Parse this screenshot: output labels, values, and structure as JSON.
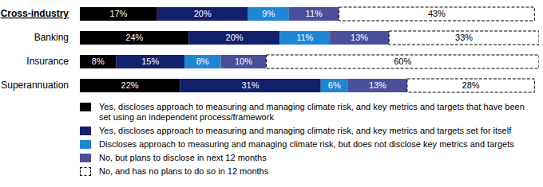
{
  "chart_data": {
    "type": "bar",
    "orientation": "horizontal",
    "stacked": true,
    "data_labels": true,
    "tick_labels": "y",
    "legend": "bottom",
    "xlim": [
      0,
      101
    ],
    "categories": [
      "Cross-industry",
      "Banking",
      "Insurance",
      "Superannuation"
    ],
    "series": [
      {
        "name": "Yes, discloses approach to measuring and managing climate risk, and key metrics and targets that have been set using an independent process/framework",
        "color": "#000000",
        "values": [
          17,
          24,
          8,
          22
        ],
        "value_labels": [
          "17%",
          "24%",
          "8%",
          "22%"
        ]
      },
      {
        "name": "Yes, discloses approach to measuring and managing climate risk, and key metrics and targets set for itself",
        "color": "#13206b",
        "values": [
          20,
          20,
          15,
          31
        ],
        "value_labels": [
          "20%",
          "20%",
          "15%",
          "31%"
        ]
      },
      {
        "name": "Discloses approach to measuring and managing climate risk, but does not disclose key metrics and targets",
        "color": "#1f86d6",
        "values": [
          9,
          11,
          8,
          6
        ],
        "value_labels": [
          "9%",
          "11%",
          "8%",
          "6%"
        ]
      },
      {
        "name": "No, but plans to disclose in next 12 months",
        "color": "#4b4f9a",
        "values": [
          11,
          13,
          10,
          13
        ],
        "value_labels": [
          "11%",
          "13%",
          "10%",
          "13%"
        ]
      },
      {
        "name": "No, and has no plans to do so in 12 months",
        "color": "#ffffff",
        "line_style": "dashed",
        "values": [
          43,
          33,
          60,
          28
        ],
        "value_labels": [
          "43%",
          "33%",
          "60%",
          "28%"
        ]
      }
    ]
  }
}
